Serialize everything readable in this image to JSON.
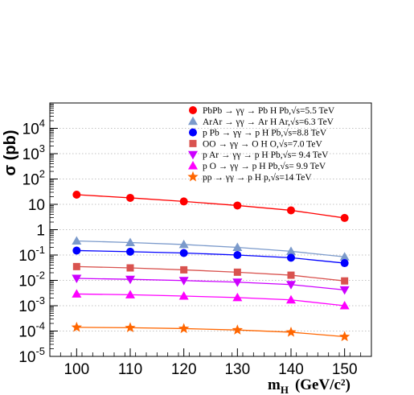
{
  "chart_data": {
    "type": "line",
    "ylabel": "σ (pb)",
    "xlabel": "m_H (GeV/c²)",
    "xlabel_main": "m",
    "xlabel_sub": "H",
    "xlabel_units": "(GeV/c²)",
    "x": [
      100,
      110,
      120,
      130,
      140,
      150
    ],
    "xlim": [
      95,
      155
    ],
    "ylim": [
      1e-05,
      100000
    ],
    "yscale": "log",
    "x_ticks": [
      "100",
      "110",
      "120",
      "130",
      "140",
      "150"
    ],
    "y_ticks": [
      {
        "base": "10",
        "exp": "-5",
        "value": 1e-05
      },
      {
        "base": "10",
        "exp": "-4",
        "value": 0.0001
      },
      {
        "base": "10",
        "exp": "-3",
        "value": 0.001
      },
      {
        "base": "10",
        "exp": "-2",
        "value": 0.01
      },
      {
        "base": "10",
        "exp": "-1",
        "value": 0.1
      },
      {
        "base": "1",
        "exp": "",
        "value": 1
      },
      {
        "base": "10",
        "exp": "",
        "value": 10
      },
      {
        "base": "10",
        "exp": "2",
        "value": 100
      },
      {
        "base": "10",
        "exp": "3",
        "value": 1000
      },
      {
        "base": "10",
        "exp": "4",
        "value": 10000
      }
    ],
    "grid": "horizontal dotted",
    "legend_position": "top-right",
    "series": [
      {
        "name": "PbPb → γγ → Pb H Pb,√s=5.5 TeV",
        "color": "#ff0000",
        "marker": "circle",
        "values": [
          24,
          18,
          13,
          9,
          5.8,
          2.9
        ]
      },
      {
        "name": "ArAr → γγ → Ar H Ar,√s=6.3 TeV",
        "color": "#7b9acb",
        "marker": "triangle-up",
        "values": [
          0.36,
          0.31,
          0.26,
          0.2,
          0.14,
          0.085
        ]
      },
      {
        "name": "p Pb → γγ → p H Pb,√s=8.8 TeV",
        "color": "#0000ff",
        "marker": "circle",
        "values": [
          0.15,
          0.135,
          0.12,
          0.1,
          0.078,
          0.048
        ]
      },
      {
        "name": "OO → γγ → O H O,√s=7.0 TeV",
        "color": "#d9534f",
        "marker": "square",
        "values": [
          0.035,
          0.031,
          0.026,
          0.021,
          0.016,
          0.0095
        ]
      },
      {
        "name": "p Ar → γγ → p H Pb,√s= 9.4 TeV",
        "color": "#cc00ff",
        "marker": "triangle-down",
        "values": [
          0.012,
          0.011,
          0.0098,
          0.0085,
          0.0068,
          0.0042
        ]
      },
      {
        "name": "p O → γγ → p H Pb,√s= 9.9 TeV",
        "color": "#ff00ff",
        "marker": "triangle-up",
        "values": [
          0.0029,
          0.0027,
          0.0024,
          0.0021,
          0.0017,
          0.001
        ]
      },
      {
        "name": "pp → γγ → p H p,√s=14 TeV",
        "color": "#ff6600",
        "marker": "star",
        "values": [
          0.00014,
          0.000135,
          0.000125,
          0.00011,
          9e-05,
          6e-05
        ]
      }
    ]
  }
}
